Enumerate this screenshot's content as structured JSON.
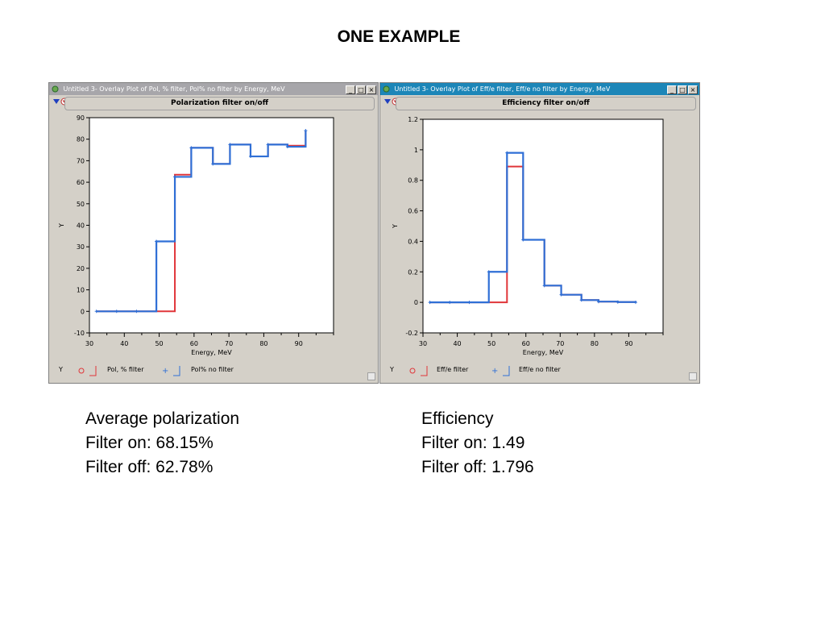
{
  "slide": {
    "title": "ONE EXAMPLE"
  },
  "windows": [
    {
      "title": "Untitled 3- Overlay Plot of Pol, % filter, Pol% no filter by Energy, MeV",
      "plot_title": "Polarization filter on/off",
      "legend": {
        "y": "Y",
        "series1": "Pol, % filter",
        "series2": "Pol% no filter"
      }
    },
    {
      "title": "Untitled 3- Overlay Plot of Eff/e filter, Eff/e no filter by Energy, MeV",
      "plot_title": "Efficiency filter on/off",
      "legend": {
        "y": "Y",
        "series1": "Eff/e filter",
        "series2": "Eff/e no filter"
      }
    }
  ],
  "colors": {
    "filter": "#e0363a",
    "no_filter": "#2f6fd6",
    "title_active": "#1c86b8",
    "title_inactive": "#a7a6aa"
  },
  "icons": {
    "collapse": "blue-down-triangle-icon",
    "menu": "red-down-triangle-icon"
  },
  "chart_data": [
    {
      "type": "line",
      "step": true,
      "xlabel": "Energy, MeV",
      "ylabel": "Y",
      "xlim": [
        30,
        100
      ],
      "ylim": [
        -10,
        90
      ],
      "xticks": [
        30,
        40,
        50,
        60,
        70,
        80,
        90
      ],
      "yticks": [
        -10,
        0,
        10,
        20,
        30,
        40,
        50,
        60,
        70,
        80,
        90
      ],
      "series": [
        {
          "name": "Pol, % filter",
          "x": [
            32,
            37.8,
            43.5,
            49.2,
            54.5,
            59.2,
            65.4,
            70.3,
            76.2,
            81.2,
            86.8,
            92
          ],
          "y": [
            0,
            0,
            0,
            0,
            63.5,
            76,
            68.5,
            77.5,
            72,
            77.5,
            77,
            84
          ]
        },
        {
          "name": "Pol% no filter",
          "x": [
            32,
            37.8,
            43.5,
            49.2,
            54.5,
            59.2,
            65.4,
            70.3,
            76.2,
            81.2,
            86.8,
            92
          ],
          "y": [
            0,
            0,
            0,
            32.5,
            62.5,
            76,
            68.5,
            77.5,
            72,
            77.5,
            76.5,
            84
          ]
        }
      ]
    },
    {
      "type": "line",
      "step": true,
      "xlabel": "Energy, MeV",
      "ylabel": "Y",
      "xlim": [
        30,
        100
      ],
      "ylim": [
        -0.2,
        1.2
      ],
      "xticks": [
        30,
        40,
        50,
        60,
        70,
        80,
        90
      ],
      "yticks": [
        -0.2,
        0,
        0.2,
        0.4,
        0.6,
        0.8,
        1,
        1.2
      ],
      "series": [
        {
          "name": "Eff/e filter",
          "x": [
            32,
            37.8,
            43.5,
            49.2,
            54.5,
            59.2,
            65.4,
            70.3,
            76.2,
            81.2,
            86.8,
            92
          ],
          "y": [
            0,
            0,
            0,
            0,
            0.89,
            0.41,
            0.11,
            0.05,
            0.015,
            0.005,
            0.002,
            0
          ]
        },
        {
          "name": "Eff/e no filter",
          "x": [
            32,
            37.8,
            43.5,
            49.2,
            54.5,
            59.2,
            65.4,
            70.3,
            76.2,
            81.2,
            86.8,
            92
          ],
          "y": [
            0,
            0,
            0,
            0.2,
            0.98,
            0.41,
            0.11,
            0.05,
            0.015,
            0.005,
            0.002,
            0
          ]
        }
      ]
    }
  ],
  "stats": {
    "polarization": {
      "heading": "Average polarization",
      "on": "Filter on: 68.15%",
      "off": "Filter off: 62.78%"
    },
    "efficiency": {
      "heading": "Efficiency",
      "on": "Filter on: 1.49",
      "off": "Filter off: 1.796"
    }
  }
}
